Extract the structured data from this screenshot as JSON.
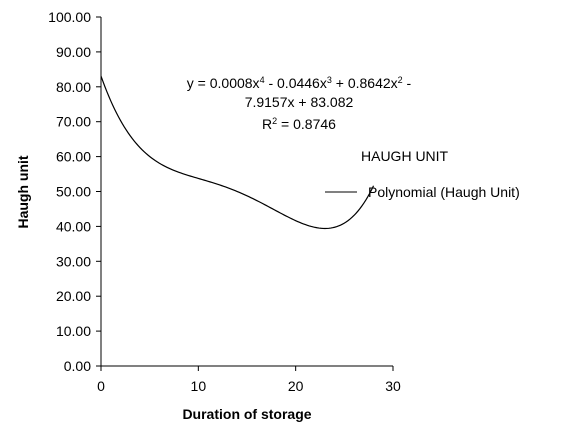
{
  "chart_data": {
    "type": "line",
    "title": "",
    "xlabel": "Duration of storage",
    "ylabel": "Haugh unit",
    "xlim": [
      0,
      30
    ],
    "ylim": [
      0,
      100
    ],
    "xticks": [
      "0",
      "10",
      "20",
      "30"
    ],
    "yticks": [
      "0.00",
      "10.00",
      "20.00",
      "30.00",
      "40.00",
      "50.00",
      "60.00",
      "70.00",
      "80.00",
      "90.00",
      "100.00"
    ],
    "grid": false,
    "legend": {
      "position": "right",
      "header": "HAUGH UNIT",
      "entries": [
        "Polynomial (Haugh Unit)"
      ]
    },
    "trendline": {
      "equation_lines": [
        "y = 0.0008x4 - 0.0446x3 + 0.8642x2 -",
        "7.9157x + 83.082",
        "R2 = 0.8746"
      ],
      "equation_parts": {
        "line1_a": "y = 0.0008x",
        "exp4": "4",
        "line1_b": " - 0.0446x",
        "exp3": "3",
        "line1_c": " + 0.8642x",
        "exp2": "2",
        "line1_d": " -",
        "line2": "7.9157x + 83.082",
        "r2_a": "R",
        "r2_exp": "2",
        "r2_b": " = 0.8746"
      },
      "coefficients": [
        0.0008,
        -0.0446,
        0.8642,
        -7.9157,
        83.082
      ],
      "x_range": [
        0,
        28
      ],
      "color": "#000000"
    }
  }
}
